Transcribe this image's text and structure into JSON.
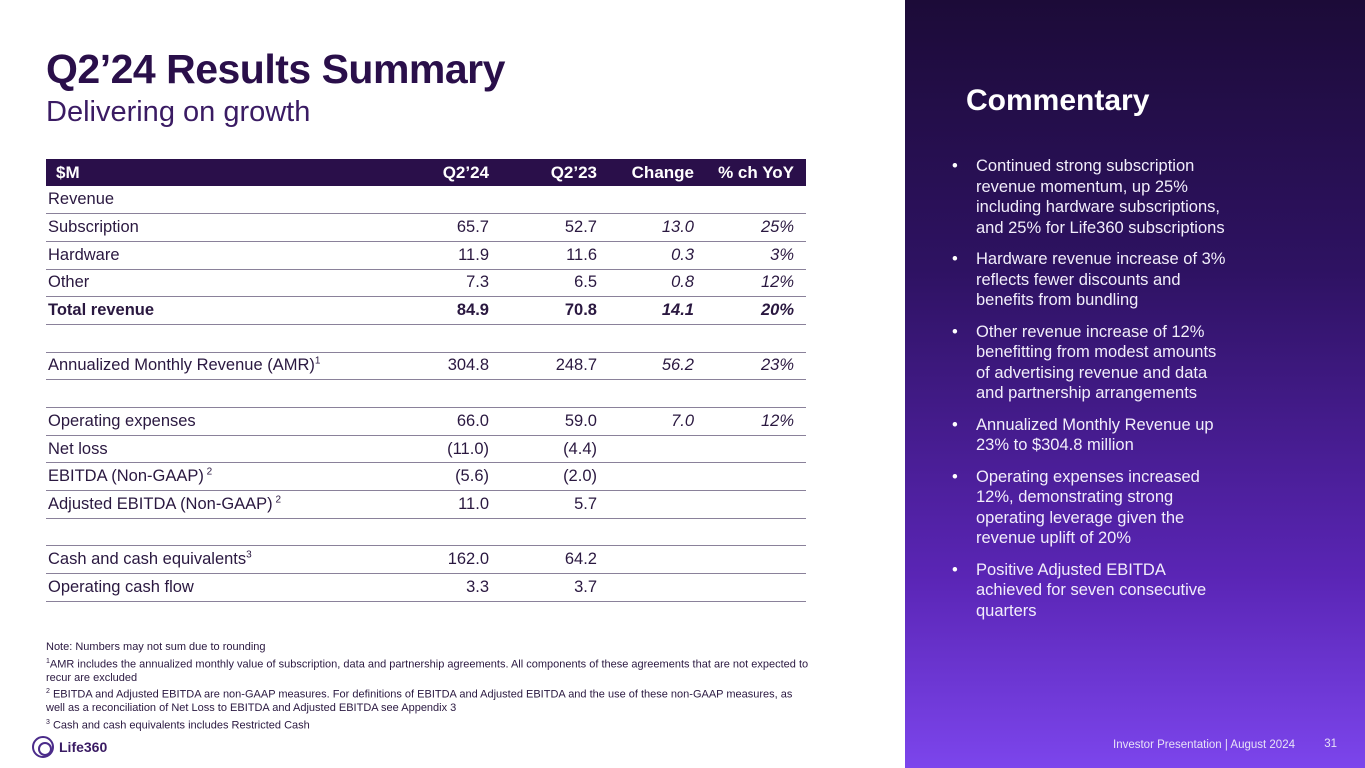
{
  "header": {
    "title": "Q2’24 Results Summary",
    "subtitle": "Delivering on growth"
  },
  "table": {
    "columns": [
      "$M",
      "Q2’24",
      "Q2’23",
      "Change",
      "% ch YoY"
    ],
    "rows": [
      {
        "label": "Revenue",
        "sup": "",
        "q224": "",
        "q223": "",
        "change": "",
        "pct": ""
      },
      {
        "label": "Subscription",
        "sup": "",
        "q224": "65.7",
        "q223": "52.7",
        "change": "13.0",
        "pct": "25%"
      },
      {
        "label": "Hardware",
        "sup": "",
        "q224": "11.9",
        "q223": "11.6",
        "change": "0.3",
        "pct": "3%"
      },
      {
        "label": "Other",
        "sup": "",
        "q224": "7.3",
        "q223": "6.5",
        "change": "0.8",
        "pct": "12%"
      },
      {
        "label": "Total revenue",
        "sup": "",
        "q224": "84.9",
        "q223": "70.8",
        "change": "14.1",
        "pct": "20%"
      },
      {
        "label": "",
        "sup": "",
        "q224": "",
        "q223": "",
        "change": "",
        "pct": ""
      },
      {
        "label": "Annualized Monthly Revenue (AMR)",
        "sup": "1",
        "q224": "304.8",
        "q223": "248.7",
        "change": "56.2",
        "pct": "23%"
      },
      {
        "label": "",
        "sup": "",
        "q224": "",
        "q223": "",
        "change": "",
        "pct": ""
      },
      {
        "label": "Operating expenses",
        "sup": "",
        "q224": "66.0",
        "q223": "59.0",
        "change": "7.0",
        "pct": "12%"
      },
      {
        "label": "Net loss",
        "sup": "",
        "q224": "(11.0)",
        "q223": "(4.4)",
        "change": "",
        "pct": ""
      },
      {
        "label": "EBITDA (Non-GAAP)",
        "sup": " 2",
        "q224": "(5.6)",
        "q223": "(2.0)",
        "change": "",
        "pct": ""
      },
      {
        "label": "Adjusted EBITDA (Non-GAAP)",
        "sup": " 2",
        "q224": "11.0",
        "q223": "5.7",
        "change": "",
        "pct": ""
      },
      {
        "label": "",
        "sup": "",
        "q224": "",
        "q223": "",
        "change": "",
        "pct": ""
      },
      {
        "label": "Cash and cash equivalents",
        "sup": "3",
        "q224": "162.0",
        "q223": "64.2",
        "change": "",
        "pct": ""
      },
      {
        "label": "Operating cash flow",
        "sup": "",
        "q224": "3.3",
        "q223": "3.7",
        "change": "",
        "pct": ""
      }
    ]
  },
  "notes": {
    "line1": "Note: Numbers may not sum due to rounding",
    "n1_sup": "1",
    "n1": "AMR includes the annualized monthly value of subscription, data and partnership agreements. All components of these agreements that are not expected to recur are excluded",
    "n2_sup": "2",
    "n2": " EBITDA and Adjusted EBITDA are non-GAAP measures. For definitions of EBITDA and Adjusted EBITDA and the use of these non-GAAP measures, as well as a reconciliation of Net Loss to EBITDA and Adjusted EBITDA see Appendix 3",
    "n3_sup": "3",
    "n3": " Cash and cash equivalents includes Restricted Cash"
  },
  "logo": {
    "text": "Life360",
    "icon": "life360-logo-icon"
  },
  "commentary": {
    "title": "Commentary",
    "bullets": [
      "Continued strong subscription revenue momentum, up 25% including hardware subscriptions, and 25% for Life360 subscriptions",
      "Hardware revenue increase of 3% reflects fewer discounts and benefits from bundling",
      "Other revenue increase of 12% benefitting from modest amounts of advertising revenue and data and partnership arrangements",
      "Annualized Monthly Revenue up 23% to $304.8 million",
      "Operating expenses increased 12%, demonstrating strong operating leverage given the revenue uplift of 20%",
      "Positive Adjusted EBITDA achieved for seven consecutive quarters"
    ]
  },
  "footer": {
    "text": "Investor Presentation  |  August 2024",
    "page": "31"
  },
  "colors": {
    "header_bg": "#2a0f4a",
    "panel_top": "#1c0b38",
    "panel_bottom": "#7c45ec"
  }
}
